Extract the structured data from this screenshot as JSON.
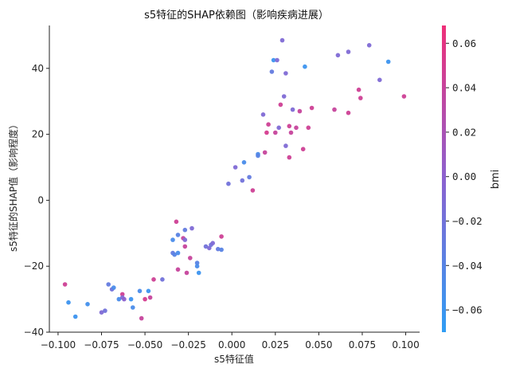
{
  "chart_data": {
    "type": "scatter",
    "title": "s5特征的SHAP依赖图（影响疾病进展）",
    "xlabel": "s5特征值",
    "ylabel": "s5特征的SHAP值（影响程度）",
    "xlim": [
      -0.105,
      0.108
    ],
    "ylim": [
      -40,
      53
    ],
    "x_ticks": [
      -0.1,
      -0.075,
      -0.05,
      -0.025,
      0.0,
      0.025,
      0.05,
      0.075,
      0.1
    ],
    "x_tick_labels": [
      "−0.100",
      "−0.075",
      "−0.050",
      "−0.025",
      "0.000",
      "0.025",
      "0.050",
      "0.075",
      "0.100"
    ],
    "y_ticks": [
      -40,
      -20,
      0,
      20,
      40
    ],
    "y_tick_labels": [
      "−40",
      "−20",
      "0",
      "20",
      "40"
    ],
    "colorbar": {
      "label": "bmi",
      "range": [
        -0.07,
        0.068
      ],
      "ticks": [
        -0.06,
        -0.04,
        -0.02,
        0.0,
        0.02,
        0.04,
        0.06
      ],
      "tick_labels": [
        "−0.06",
        "−0.04",
        "−0.02",
        "0.00",
        "0.02",
        "0.04",
        "0.06"
      ],
      "color_low": "#2f9df4",
      "color_mid": "#8b62d0",
      "color_high": "#ef2f78"
    },
    "points": [
      {
        "x": -0.096,
        "y": -25.5,
        "c": 0.045
      },
      {
        "x": -0.094,
        "y": -31.0,
        "c": -0.06
      },
      {
        "x": -0.09,
        "y": -35.3,
        "c": -0.06
      },
      {
        "x": -0.083,
        "y": -31.5,
        "c": -0.055
      },
      {
        "x": -0.075,
        "y": -34.0,
        "c": -0.01
      },
      {
        "x": -0.073,
        "y": -33.5,
        "c": -0.02
      },
      {
        "x": -0.071,
        "y": -25.5,
        "c": -0.03
      },
      {
        "x": -0.069,
        "y": -27.0,
        "c": -0.02
      },
      {
        "x": -0.068,
        "y": -26.5,
        "c": -0.05
      },
      {
        "x": -0.065,
        "y": -30.0,
        "c": -0.05
      },
      {
        "x": -0.063,
        "y": -28.5,
        "c": 0.045
      },
      {
        "x": -0.063,
        "y": -29.5,
        "c": -0.01
      },
      {
        "x": -0.062,
        "y": -30.0,
        "c": 0.0
      },
      {
        "x": -0.058,
        "y": -30.0,
        "c": -0.06
      },
      {
        "x": -0.057,
        "y": -32.5,
        "c": -0.05
      },
      {
        "x": -0.053,
        "y": -27.5,
        "c": -0.05
      },
      {
        "x": -0.052,
        "y": -35.8,
        "c": 0.04
      },
      {
        "x": -0.05,
        "y": -30.0,
        "c": 0.05
      },
      {
        "x": -0.048,
        "y": -27.5,
        "c": -0.06
      },
      {
        "x": -0.047,
        "y": -29.5,
        "c": 0.04
      },
      {
        "x": -0.045,
        "y": -24.0,
        "c": 0.045
      },
      {
        "x": -0.04,
        "y": -24.0,
        "c": -0.02
      },
      {
        "x": -0.034,
        "y": -16.0,
        "c": -0.03
      },
      {
        "x": -0.034,
        "y": -12.0,
        "c": -0.05
      },
      {
        "x": -0.033,
        "y": -16.5,
        "c": -0.04
      },
      {
        "x": -0.032,
        "y": -6.5,
        "c": 0.045
      },
      {
        "x": -0.031,
        "y": -10.5,
        "c": -0.04
      },
      {
        "x": -0.031,
        "y": -16.0,
        "c": -0.05
      },
      {
        "x": -0.031,
        "y": -21.0,
        "c": 0.04
      },
      {
        "x": -0.028,
        "y": -11.5,
        "c": 0.04
      },
      {
        "x": -0.027,
        "y": -12.0,
        "c": -0.01
      },
      {
        "x": -0.027,
        "y": -14.0,
        "c": 0.04
      },
      {
        "x": -0.027,
        "y": -9.0,
        "c": -0.03
      },
      {
        "x": -0.026,
        "y": -22.0,
        "c": 0.04
      },
      {
        "x": -0.024,
        "y": -17.5,
        "c": 0.04
      },
      {
        "x": -0.023,
        "y": -8.5,
        "c": -0.01
      },
      {
        "x": -0.02,
        "y": -19.0,
        "c": -0.04
      },
      {
        "x": -0.02,
        "y": -20.0,
        "c": -0.05
      },
      {
        "x": -0.019,
        "y": -22.0,
        "c": -0.06
      },
      {
        "x": -0.015,
        "y": -14.0,
        "c": -0.02
      },
      {
        "x": -0.013,
        "y": -14.5,
        "c": -0.01
      },
      {
        "x": -0.012,
        "y": -13.5,
        "c": -0.02
      },
      {
        "x": -0.011,
        "y": -13.0,
        "c": -0.01
      },
      {
        "x": -0.008,
        "y": -14.8,
        "c": -0.03
      },
      {
        "x": -0.006,
        "y": -11.0,
        "c": 0.045
      },
      {
        "x": -0.006,
        "y": -15.0,
        "c": -0.04
      },
      {
        "x": -0.002,
        "y": 5.0,
        "c": -0.02
      },
      {
        "x": 0.002,
        "y": 10.0,
        "c": -0.01
      },
      {
        "x": 0.006,
        "y": 6.0,
        "c": -0.02
      },
      {
        "x": 0.007,
        "y": 11.5,
        "c": -0.05
      },
      {
        "x": 0.01,
        "y": 7.0,
        "c": -0.03
      },
      {
        "x": 0.012,
        "y": 3.0,
        "c": 0.045
      },
      {
        "x": 0.015,
        "y": 14.0,
        "c": -0.05
      },
      {
        "x": 0.015,
        "y": 13.5,
        "c": -0.04
      },
      {
        "x": 0.018,
        "y": 26.0,
        "c": -0.01
      },
      {
        "x": 0.019,
        "y": 14.5,
        "c": 0.04
      },
      {
        "x": 0.02,
        "y": 20.5,
        "c": 0.05
      },
      {
        "x": 0.021,
        "y": 23.0,
        "c": 0.045
      },
      {
        "x": 0.023,
        "y": 39.0,
        "c": -0.03
      },
      {
        "x": 0.024,
        "y": 42.5,
        "c": -0.06
      },
      {
        "x": 0.025,
        "y": 20.5,
        "c": 0.04
      },
      {
        "x": 0.026,
        "y": 42.5,
        "c": -0.01
      },
      {
        "x": 0.027,
        "y": 22.0,
        "c": -0.01
      },
      {
        "x": 0.028,
        "y": 29.0,
        "c": 0.045
      },
      {
        "x": 0.029,
        "y": 48.5,
        "c": -0.01
      },
      {
        "x": 0.03,
        "y": 31.5,
        "c": -0.01
      },
      {
        "x": 0.031,
        "y": 38.5,
        "c": -0.01
      },
      {
        "x": 0.031,
        "y": 16.5,
        "c": -0.01
      },
      {
        "x": 0.033,
        "y": 13.0,
        "c": 0.045
      },
      {
        "x": 0.033,
        "y": 22.5,
        "c": 0.045
      },
      {
        "x": 0.034,
        "y": 20.5,
        "c": 0.04
      },
      {
        "x": 0.035,
        "y": 27.5,
        "c": -0.01
      },
      {
        "x": 0.037,
        "y": 22.0,
        "c": 0.04
      },
      {
        "x": 0.039,
        "y": 27.0,
        "c": 0.04
      },
      {
        "x": 0.041,
        "y": 15.5,
        "c": 0.045
      },
      {
        "x": 0.042,
        "y": 40.5,
        "c": -0.06
      },
      {
        "x": 0.044,
        "y": 22.0,
        "c": 0.045
      },
      {
        "x": 0.046,
        "y": 28.0,
        "c": 0.045
      },
      {
        "x": 0.059,
        "y": 27.5,
        "c": 0.04
      },
      {
        "x": 0.061,
        "y": 44.0,
        "c": -0.01
      },
      {
        "x": 0.067,
        "y": 45.0,
        "c": -0.01
      },
      {
        "x": 0.067,
        "y": 26.5,
        "c": 0.045
      },
      {
        "x": 0.073,
        "y": 33.5,
        "c": 0.045
      },
      {
        "x": 0.074,
        "y": 31.0,
        "c": 0.045
      },
      {
        "x": 0.079,
        "y": 47.0,
        "c": -0.01
      },
      {
        "x": 0.085,
        "y": 36.5,
        "c": -0.01
      },
      {
        "x": 0.09,
        "y": 42.0,
        "c": -0.06
      },
      {
        "x": 0.099,
        "y": 31.5,
        "c": 0.045
      }
    ]
  }
}
